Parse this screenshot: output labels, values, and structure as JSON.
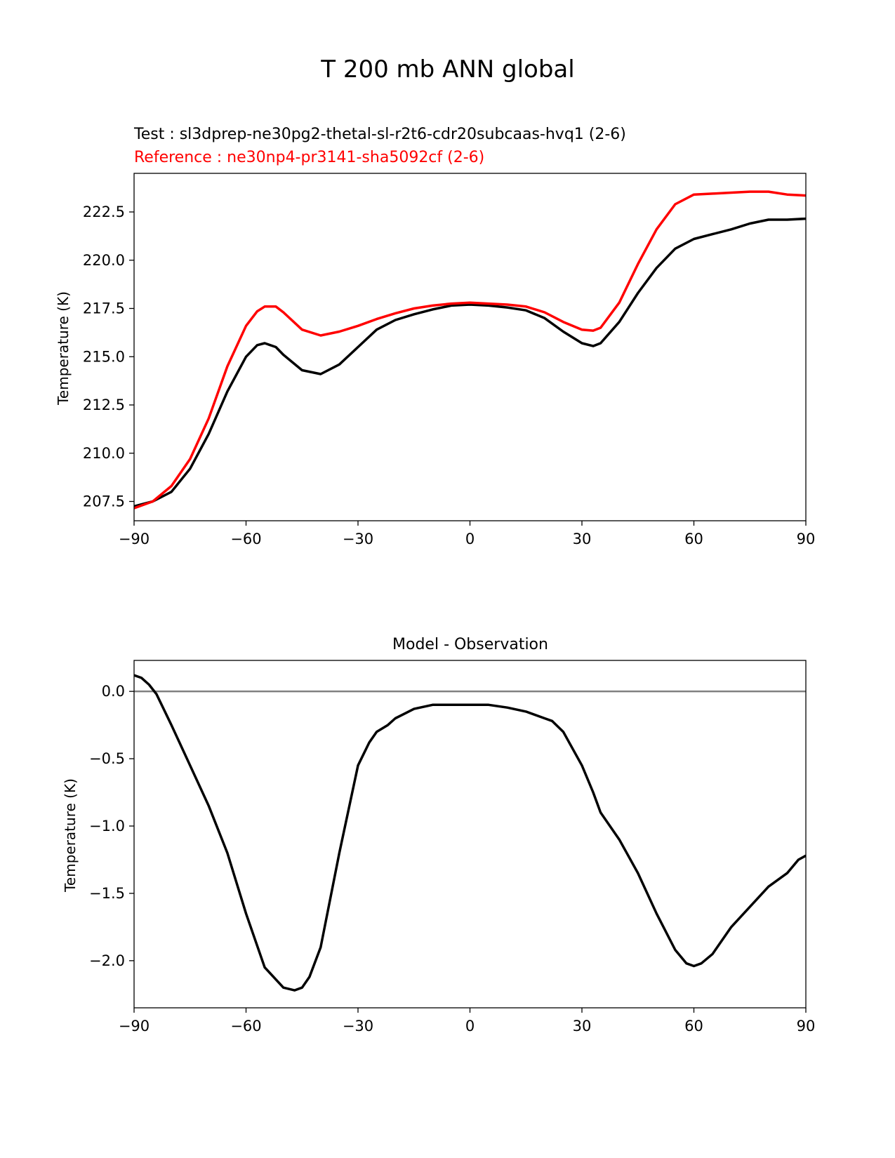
{
  "suptitle": "T 200 mb ANN global",
  "colors": {
    "test": "#000000",
    "reference": "#ff0000",
    "zero_line": "#808080",
    "axes": "#000000"
  },
  "chart_data": [
    {
      "type": "line",
      "test_label": "Test : sl3dprep-ne30pg2-thetal-sl-r2t6-cdr20subcaas-hvq1 (2-6)",
      "reference_label": "Reference : ne30np4-pr3141-sha5092cf (2-6)",
      "ylabel": "Temperature (K)",
      "xlim": [
        -90,
        90
      ],
      "ylim": [
        206.5,
        224.5
      ],
      "xticks": [
        -90,
        -60,
        -30,
        0,
        30,
        60,
        90
      ],
      "xtick_labels": [
        "−90",
        "−60",
        "−30",
        "0",
        "30",
        "60",
        "90"
      ],
      "yticks": [
        207.5,
        210.0,
        212.5,
        215.0,
        217.5,
        220.0,
        222.5
      ],
      "ytick_labels": [
        "207.5",
        "210.0",
        "212.5",
        "215.0",
        "217.5",
        "220.0",
        "222.5"
      ],
      "x": [
        -90,
        -85,
        -80,
        -75,
        -70,
        -65,
        -60,
        -57,
        -55,
        -52,
        -50,
        -45,
        -40,
        -35,
        -30,
        -25,
        -20,
        -15,
        -10,
        -5,
        0,
        5,
        10,
        15,
        20,
        25,
        30,
        33,
        35,
        40,
        45,
        50,
        55,
        60,
        65,
        70,
        75,
        80,
        85,
        90
      ],
      "series": [
        {
          "name": "test",
          "values": [
            207.25,
            207.5,
            208.0,
            209.2,
            211.0,
            213.2,
            215.0,
            215.6,
            215.7,
            215.5,
            215.1,
            214.3,
            214.1,
            214.6,
            215.5,
            216.4,
            216.9,
            217.2,
            217.45,
            217.65,
            217.7,
            217.65,
            217.55,
            217.4,
            217.0,
            216.3,
            215.7,
            215.55,
            215.7,
            216.8,
            218.3,
            219.6,
            220.6,
            221.1,
            221.35,
            221.6,
            221.9,
            222.1,
            222.1,
            222.15
          ]
        },
        {
          "name": "reference",
          "values": [
            207.15,
            207.5,
            208.3,
            209.7,
            211.8,
            214.5,
            216.6,
            217.35,
            217.6,
            217.6,
            217.3,
            216.4,
            216.1,
            216.3,
            216.6,
            216.95,
            217.25,
            217.5,
            217.65,
            217.75,
            217.8,
            217.75,
            217.7,
            217.6,
            217.3,
            216.8,
            216.4,
            216.35,
            216.5,
            217.8,
            219.8,
            221.6,
            222.9,
            223.4,
            223.45,
            223.5,
            223.55,
            223.55,
            223.4,
            223.35
          ]
        }
      ]
    },
    {
      "type": "line",
      "title": "Model - Observation",
      "ylabel": "Temperature (K)",
      "xlim": [
        -90,
        90
      ],
      "ylim": [
        -2.35,
        0.23
      ],
      "xticks": [
        -90,
        -60,
        -30,
        0,
        30,
        60,
        90
      ],
      "xtick_labels": [
        "−90",
        "−60",
        "−30",
        "0",
        "30",
        "60",
        "90"
      ],
      "yticks": [
        0.0,
        -0.5,
        -1.0,
        -1.5,
        -2.0
      ],
      "ytick_labels": [
        "0.0",
        "−0.5",
        "−1.0",
        "−1.5",
        "−2.0"
      ],
      "zero_line": 0.0,
      "x": [
        -90,
        -88,
        -86,
        -84,
        -80,
        -75,
        -70,
        -65,
        -60,
        -55,
        -50,
        -47,
        -45,
        -43,
        -40,
        -35,
        -30,
        -27,
        -25,
        -22,
        -20,
        -15,
        -10,
        -5,
        0,
        5,
        10,
        15,
        20,
        22,
        25,
        30,
        33,
        35,
        40,
        45,
        50,
        55,
        58,
        60,
        62,
        65,
        70,
        75,
        80,
        85,
        88,
        90
      ],
      "series": [
        {
          "name": "difference",
          "values": [
            0.12,
            0.1,
            0.05,
            -0.02,
            -0.25,
            -0.55,
            -0.85,
            -1.2,
            -1.65,
            -2.05,
            -2.2,
            -2.22,
            -2.2,
            -2.12,
            -1.9,
            -1.2,
            -0.55,
            -0.38,
            -0.3,
            -0.25,
            -0.2,
            -0.13,
            -0.1,
            -0.1,
            -0.1,
            -0.1,
            -0.12,
            -0.15,
            -0.2,
            -0.22,
            -0.3,
            -0.55,
            -0.75,
            -0.9,
            -1.1,
            -1.35,
            -1.65,
            -1.92,
            -2.02,
            -2.04,
            -2.02,
            -1.95,
            -1.75,
            -1.6,
            -1.45,
            -1.35,
            -1.25,
            -1.22
          ]
        }
      ]
    }
  ]
}
